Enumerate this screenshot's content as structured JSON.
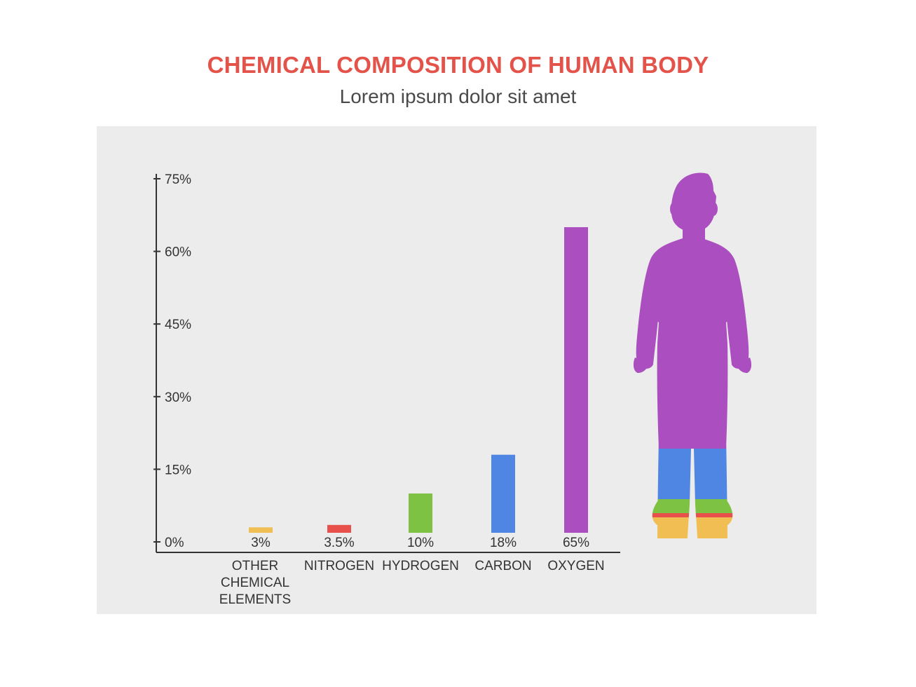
{
  "header": {
    "title": "CHEMICAL COMPOSITION OF HUMAN BODY",
    "subtitle": "Lorem ipsum dolor sit amet"
  },
  "colors": {
    "title": "#e4534a",
    "panel": "#ececec",
    "axis": "#333333",
    "text": "#333333",
    "other": "#f0be52",
    "nitrogen": "#e8514b",
    "hydrogen": "#7dc242",
    "carbon": "#4f86e3",
    "oxygen": "#ab4ebf"
  },
  "chart_data": {
    "type": "bar",
    "categories": [
      [
        "OTHER",
        "CHEMICAL",
        "ELEMENTS"
      ],
      [
        "NITROGEN"
      ],
      [
        "HYDROGEN"
      ],
      [
        "CARBON"
      ],
      [
        "OXYGEN"
      ]
    ],
    "value_labels": [
      "3%",
      "3.5%",
      "10%",
      "18%",
      "65%"
    ],
    "values": [
      3,
      3.5,
      10,
      18,
      65
    ],
    "bar_colors": [
      "#f0be52",
      "#e8514b",
      "#7dc242",
      "#4f86e3",
      "#ab4ebf"
    ],
    "yticks": [
      0,
      15,
      30,
      45,
      60,
      75
    ],
    "ytick_labels": [
      "0%",
      "15%",
      "30%",
      "45%",
      "60%",
      "75%"
    ],
    "ylim": [
      0,
      75
    ],
    "grid": false,
    "legend": "none"
  },
  "figure": {
    "icon": "human-body-icon",
    "segments": [
      {
        "element": "oxygen",
        "color": "#ab4ebf"
      },
      {
        "element": "carbon",
        "color": "#4f86e3"
      },
      {
        "element": "hydrogen",
        "color": "#7dc242"
      },
      {
        "element": "nitrogen",
        "color": "#e8514b"
      },
      {
        "element": "other",
        "color": "#f0be52"
      }
    ]
  }
}
